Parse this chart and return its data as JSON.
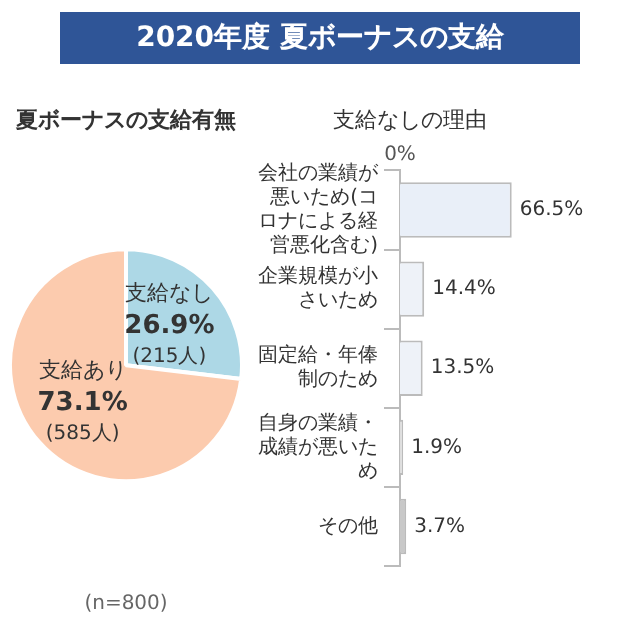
{
  "chart_data": [
    {
      "type": "pie",
      "title": "2020年度 夏ボーナスの支給",
      "subtitle": "夏ボーナスの支給有無",
      "categories": [
        "支給なし",
        "支給あり"
      ],
      "values": [
        26.9,
        73.1
      ],
      "colors": [
        "#add8e6",
        "#fccbae"
      ],
      "value_labels": [
        "26.9%",
        "73.1%"
      ],
      "legend": false,
      "annotations": [
        {
          "text": "(215人)",
          "x": "支給なし"
        },
        {
          "text": "(585人)",
          "x": "支給あり"
        },
        "(n=800)"
      ]
    },
    {
      "type": "bar",
      "orientation": "horizontal",
      "title": "支給なしの理由",
      "categories": [
        "会社の業績が悪いため(コロナによる経営悪化含む)",
        "企業規模が小さいため",
        "固定給・年俸制のため",
        "自身の業績・成績が悪いため",
        "その他"
      ],
      "values": [
        66.5,
        14.4,
        13.5,
        1.9,
        3.7
      ],
      "colors": [
        "#e9eff8",
        "#eef2f8",
        "#eef2f8",
        "#dddddd",
        "#c8c8c8"
      ],
      "value_labels": [
        "66.5%",
        "14.4%",
        "13.5%",
        "1.9%",
        "3.7%"
      ],
      "annotations": [
        "0%"
      ],
      "legend": false
    }
  ]
}
